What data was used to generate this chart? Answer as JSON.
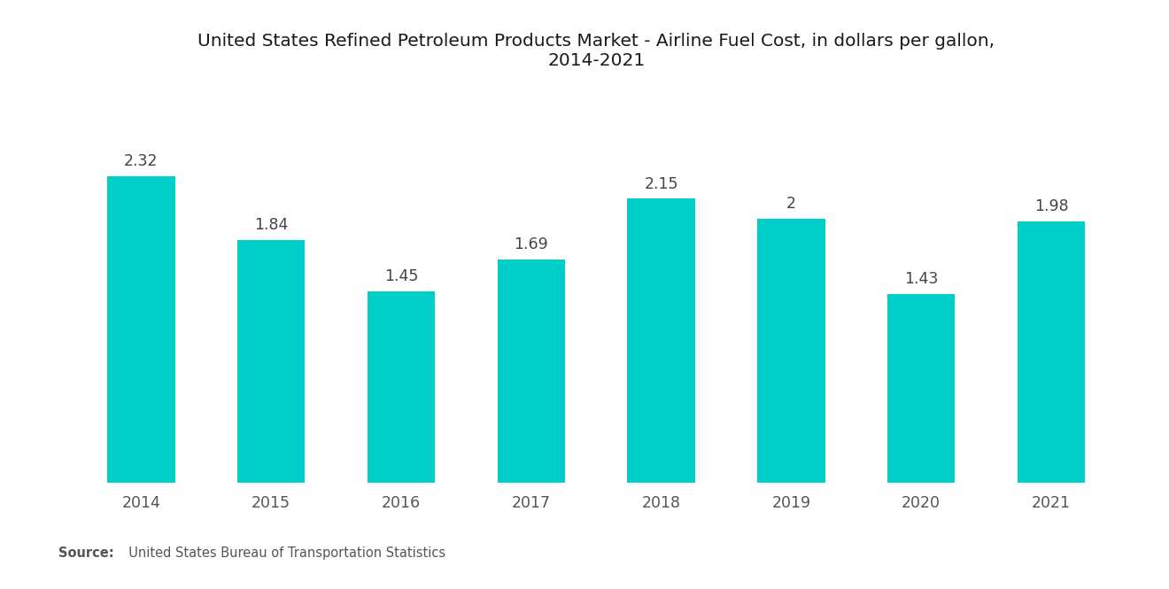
{
  "title": "United States Refined Petroleum Products Market - Airline Fuel Cost, in dollars per gallon,\n2014-2021",
  "categories": [
    "2014",
    "2015",
    "2016",
    "2017",
    "2018",
    "2019",
    "2020",
    "2021"
  ],
  "values": [
    2.32,
    1.84,
    1.45,
    1.69,
    2.15,
    2.0,
    1.43,
    1.98
  ],
  "labels": [
    "2.32",
    "1.84",
    "1.45",
    "1.69",
    "2.15",
    "2",
    "1.43",
    "1.98"
  ],
  "bar_color": "#00CEC9",
  "background_color": "#FFFFFF",
  "title_fontsize": 14.5,
  "label_fontsize": 12.5,
  "tick_fontsize": 12.5,
  "source_bold": "Source:",
  "source_normal": "  United States Bureau of Transportation Statistics",
  "source_fontsize": 10.5,
  "ylim": [
    0,
    2.85
  ],
  "bar_width": 0.52
}
